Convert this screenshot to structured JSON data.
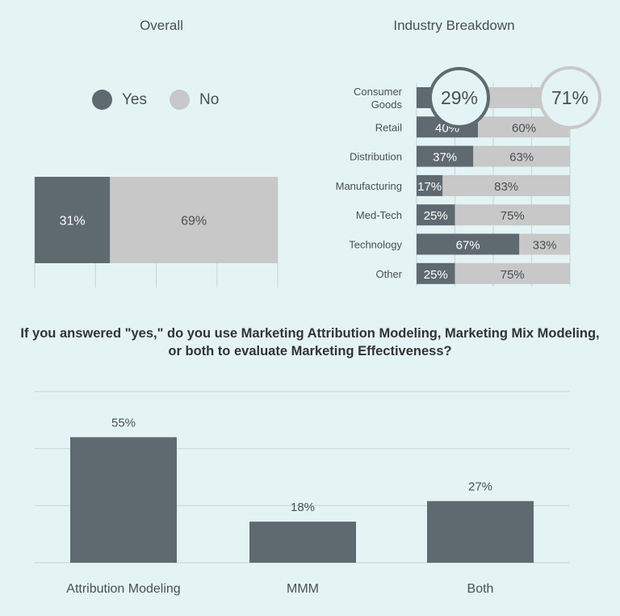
{
  "colors": {
    "yes": "#5f6a70",
    "no": "#c8c8c8",
    "bg": "#e4f4f4",
    "grid": "#c9d9d9",
    "text": "#4a4f52"
  },
  "overall": {
    "title": "Overall",
    "legend": [
      {
        "key": "yes",
        "label": "Yes"
      },
      {
        "key": "no",
        "label": "No"
      }
    ]
  },
  "industry": {
    "title": "Industry Breakdown"
  },
  "question": "If you answered \"yes,\" do you use Marketing Attribution Modeling, Marketing Mix Modeling, or both to evaluate Marketing Effectiveness?",
  "chart_data": [
    {
      "type": "bar",
      "orientation": "horizontal-stacked",
      "title": "Overall",
      "series": [
        {
          "name": "Yes",
          "values": [
            31
          ],
          "labels": [
            "31%"
          ]
        },
        {
          "name": "No",
          "values": [
            69
          ],
          "labels": [
            "69%"
          ]
        }
      ],
      "xlim": [
        0,
        100
      ],
      "grid": true,
      "legend_position": "top"
    },
    {
      "type": "bar",
      "orientation": "horizontal-stacked",
      "title": "Industry Breakdown",
      "categories": [
        "Consumer Goods",
        "Retail",
        "Distribution",
        "Manufacturing",
        "Med-Tech",
        "Technology",
        "Other"
      ],
      "category_lines": [
        [
          "Consumer",
          "Goods"
        ],
        [
          "Retail"
        ],
        [
          "Distribution"
        ],
        [
          "Manufacturing"
        ],
        [
          "Med-Tech"
        ],
        [
          "Technology"
        ],
        [
          "Other"
        ]
      ],
      "series": [
        {
          "name": "Yes",
          "values": [
            29,
            40,
            37,
            17,
            25,
            67,
            25
          ],
          "labels": [
            "",
            "40%",
            "37%",
            "17%",
            "25%",
            "67%",
            "25%"
          ]
        },
        {
          "name": "No",
          "values": [
            71,
            60,
            63,
            83,
            75,
            33,
            75
          ],
          "labels": [
            "",
            "60%",
            "63%",
            "83%",
            "75%",
            "33%",
            "75%"
          ]
        }
      ],
      "callouts": {
        "yes": "29%",
        "no": "71%"
      },
      "xlim": [
        0,
        100
      ],
      "grid": true
    },
    {
      "type": "bar",
      "title": "If you answered \"yes,\" do you use Marketing Attribution Modeling, Marketing Mix Modeling, or both to evaluate Marketing Effectiveness?",
      "categories": [
        "Attribution Modeling",
        "MMM",
        "Both"
      ],
      "values": [
        55,
        18,
        27
      ],
      "labels": [
        "55%",
        "18%",
        "27%"
      ],
      "ylim": [
        0,
        75
      ],
      "grid": true
    }
  ]
}
